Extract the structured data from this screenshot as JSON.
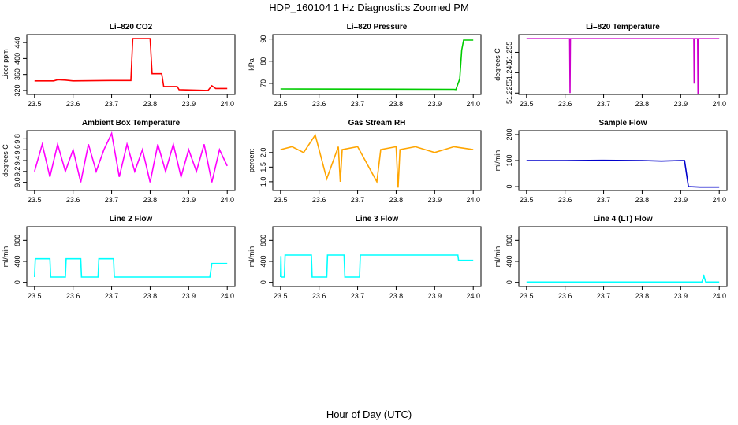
{
  "figure": {
    "title": "HDP_160104  1 Hz Diagnostics Zoomed PM",
    "xlabel": "Hour of Day (UTC)"
  },
  "chart_data": [
    {
      "type": "line",
      "title": "Li–820 CO2",
      "ylabel": "Licor ppm",
      "color": "#ff0000",
      "xlim": [
        23.48,
        24.02
      ],
      "ylim": [
        310,
        460
      ],
      "xticks": [
        23.5,
        23.6,
        23.7,
        23.8,
        23.9,
        24.0
      ],
      "xtick_labels": [
        "23.5",
        "23.6",
        "23.7",
        "23.8",
        "23.9",
        "24.0"
      ],
      "yticks": [
        320,
        360,
        400,
        440
      ],
      "ytick_labels": [
        "320",
        "360",
        "400",
        "440"
      ],
      "x": [
        23.5,
        23.55,
        23.56,
        23.58,
        23.6,
        23.7,
        23.75,
        23.755,
        23.8,
        23.805,
        23.83,
        23.835,
        23.87,
        23.875,
        23.95,
        23.96,
        23.97,
        24.0
      ],
      "y": [
        344,
        344,
        347,
        346,
        344,
        345,
        345,
        450,
        450,
        362,
        362,
        330,
        330,
        322,
        320,
        332,
        325,
        325
      ]
    },
    {
      "type": "line",
      "title": "Li–820 Pressure",
      "ylabel": "kPa",
      "color": "#00cc00",
      "xlim": [
        23.48,
        24.02
      ],
      "ylim": [
        65,
        92
      ],
      "xticks": [
        23.5,
        23.6,
        23.7,
        23.8,
        23.9,
        24.0
      ],
      "xtick_labels": [
        "23.5",
        "23.6",
        "23.7",
        "23.8",
        "23.9",
        "24.0"
      ],
      "yticks": [
        70,
        80,
        90
      ],
      "ytick_labels": [
        "70",
        "80",
        "90"
      ],
      "x": [
        23.5,
        23.95,
        23.955,
        23.965,
        23.97,
        23.975,
        24.0
      ],
      "y": [
        67.5,
        67.3,
        67.2,
        72,
        85,
        89.5,
        89.5
      ]
    },
    {
      "type": "line",
      "title": "Li–820 Temperature",
      "ylabel": "degrees C",
      "color": "#cc00cc",
      "xlim": [
        23.48,
        24.02
      ],
      "ylim": [
        51.224,
        51.268
      ],
      "xticks": [
        23.5,
        23.6,
        23.7,
        23.8,
        23.9,
        24.0
      ],
      "xtick_labels": [
        "23.5",
        "23.6",
        "23.7",
        "23.8",
        "23.9",
        "24.0"
      ],
      "yticks": [
        51.225,
        51.24,
        51.255
      ],
      "ytick_labels": [
        "51.225",
        "51.240",
        "51.255"
      ],
      "x": [
        23.5,
        23.612,
        23.613,
        23.614,
        23.934,
        23.935,
        23.936,
        23.944,
        23.945,
        23.946,
        24.0
      ],
      "y": [
        51.265,
        51.265,
        51.225,
        51.265,
        51.265,
        51.232,
        51.265,
        51.265,
        51.224,
        51.265,
        51.265
      ]
    },
    {
      "type": "line",
      "title": "Ambient Box Temperature",
      "ylabel": "degrees C",
      "color": "#ff00ff",
      "xlim": [
        23.48,
        24.02
      ],
      "ylim": [
        8.85,
        9.95
      ],
      "xticks": [
        23.5,
        23.6,
        23.7,
        23.8,
        23.9,
        24.0
      ],
      "xtick_labels": [
        "23.5",
        "23.6",
        "23.7",
        "23.8",
        "23.9",
        "24.0"
      ],
      "yticks": [
        9.0,
        9.2,
        9.4,
        9.6,
        9.8
      ],
      "ytick_labels": [
        "9.0",
        "9.2",
        "9.4",
        "9.6",
        "9.8"
      ],
      "x": [
        23.5,
        23.52,
        23.54,
        23.56,
        23.58,
        23.6,
        23.62,
        23.64,
        23.66,
        23.68,
        23.7,
        23.72,
        23.74,
        23.76,
        23.78,
        23.8,
        23.82,
        23.84,
        23.86,
        23.88,
        23.9,
        23.92,
        23.94,
        23.96,
        23.98,
        24.0
      ],
      "y": [
        9.2,
        9.7,
        9.1,
        9.7,
        9.2,
        9.6,
        9.0,
        9.7,
        9.2,
        9.6,
        9.9,
        9.1,
        9.7,
        9.2,
        9.6,
        9.0,
        9.7,
        9.2,
        9.7,
        9.1,
        9.6,
        9.2,
        9.7,
        9.0,
        9.6,
        9.3
      ]
    },
    {
      "type": "line",
      "title": "Gas Stream RH",
      "ylabel": "percent",
      "color": "#ffa500",
      "xlim": [
        23.48,
        24.02
      ],
      "ylim": [
        0.7,
        2.75
      ],
      "xticks": [
        23.5,
        23.6,
        23.7,
        23.8,
        23.9,
        24.0
      ],
      "xtick_labels": [
        "23.5",
        "23.6",
        "23.7",
        "23.8",
        "23.9",
        "24.0"
      ],
      "yticks": [
        1.0,
        1.5,
        2.0
      ],
      "ytick_labels": [
        "1.0",
        "1.5",
        "2.0"
      ],
      "x": [
        23.5,
        23.53,
        23.56,
        23.59,
        23.6,
        23.62,
        23.65,
        23.655,
        23.66,
        23.7,
        23.75,
        23.76,
        23.8,
        23.805,
        23.81,
        23.85,
        23.9,
        23.95,
        24.0
      ],
      "y": [
        2.1,
        2.2,
        2.0,
        2.6,
        2.1,
        1.1,
        2.2,
        1.0,
        2.1,
        2.2,
        1.0,
        2.1,
        2.2,
        0.8,
        2.1,
        2.2,
        2.0,
        2.2,
        2.1
      ]
    },
    {
      "type": "line",
      "title": "Sample Flow",
      "ylabel": "ml/min",
      "color": "#0000cc",
      "xlim": [
        23.48,
        24.02
      ],
      "ylim": [
        -15,
        215
      ],
      "xticks": [
        23.5,
        23.6,
        23.7,
        23.8,
        23.9,
        24.0
      ],
      "xtick_labels": [
        "23.5",
        "23.6",
        "23.7",
        "23.8",
        "23.9",
        "24.0"
      ],
      "yticks": [
        0,
        100,
        200
      ],
      "ytick_labels": [
        "0",
        "100",
        "200"
      ],
      "x": [
        23.5,
        23.6,
        23.7,
        23.8,
        23.85,
        23.9,
        23.91,
        23.92,
        23.95,
        24.0
      ],
      "y": [
        100,
        100,
        101,
        100,
        98,
        100,
        100,
        0,
        -2,
        -2
      ]
    },
    {
      "type": "line",
      "title": "Line 2 Flow",
      "ylabel": "ml/min",
      "color": "#00ffff",
      "xlim": [
        23.48,
        24.02
      ],
      "ylim": [
        -80,
        1060
      ],
      "xticks": [
        23.5,
        23.6,
        23.7,
        23.8,
        23.9,
        24.0
      ],
      "xtick_labels": [
        "23.5",
        "23.6",
        "23.7",
        "23.8",
        "23.9",
        "24.0"
      ],
      "yticks": [
        0,
        400,
        800
      ],
      "ytick_labels": [
        "0",
        "400",
        "800"
      ],
      "x": [
        23.5,
        23.502,
        23.54,
        23.542,
        23.58,
        23.582,
        23.62,
        23.622,
        23.665,
        23.667,
        23.705,
        23.707,
        23.955,
        23.96,
        24.0
      ],
      "y": [
        100,
        450,
        450,
        100,
        100,
        450,
        450,
        100,
        100,
        450,
        450,
        100,
        100,
        360,
        360
      ]
    },
    {
      "type": "line",
      "title": "Line 3 Flow",
      "ylabel": "ml/min",
      "color": "#00ffff",
      "xlim": [
        23.48,
        24.02
      ],
      "ylim": [
        -80,
        1060
      ],
      "xticks": [
        23.5,
        23.6,
        23.7,
        23.8,
        23.9,
        24.0
      ],
      "xtick_labels": [
        "23.5",
        "23.6",
        "23.7",
        "23.8",
        "23.9",
        "24.0"
      ],
      "yticks": [
        0,
        400,
        800
      ],
      "ytick_labels": [
        "0",
        "400",
        "800"
      ],
      "x": [
        23.5,
        23.501,
        23.502,
        23.51,
        23.512,
        23.58,
        23.582,
        23.62,
        23.622,
        23.665,
        23.667,
        23.705,
        23.707,
        23.96,
        23.962,
        24.0
      ],
      "y": [
        100,
        500,
        100,
        100,
        520,
        520,
        100,
        100,
        520,
        520,
        100,
        100,
        520,
        520,
        420,
        420
      ]
    },
    {
      "type": "line",
      "title": "Line 4 (LT) Flow",
      "ylabel": "ml/min",
      "color": "#00ffff",
      "xlim": [
        23.48,
        24.02
      ],
      "ylim": [
        -80,
        1060
      ],
      "xticks": [
        23.5,
        23.6,
        23.7,
        23.8,
        23.9,
        24.0
      ],
      "xtick_labels": [
        "23.5",
        "23.6",
        "23.7",
        "23.8",
        "23.9",
        "24.0"
      ],
      "yticks": [
        0,
        400,
        800
      ],
      "ytick_labels": [
        "0",
        "400",
        "800"
      ],
      "x": [
        23.5,
        23.8,
        23.955,
        23.96,
        23.965,
        24.0
      ],
      "y": [
        5,
        5,
        5,
        120,
        5,
        5
      ]
    }
  ]
}
